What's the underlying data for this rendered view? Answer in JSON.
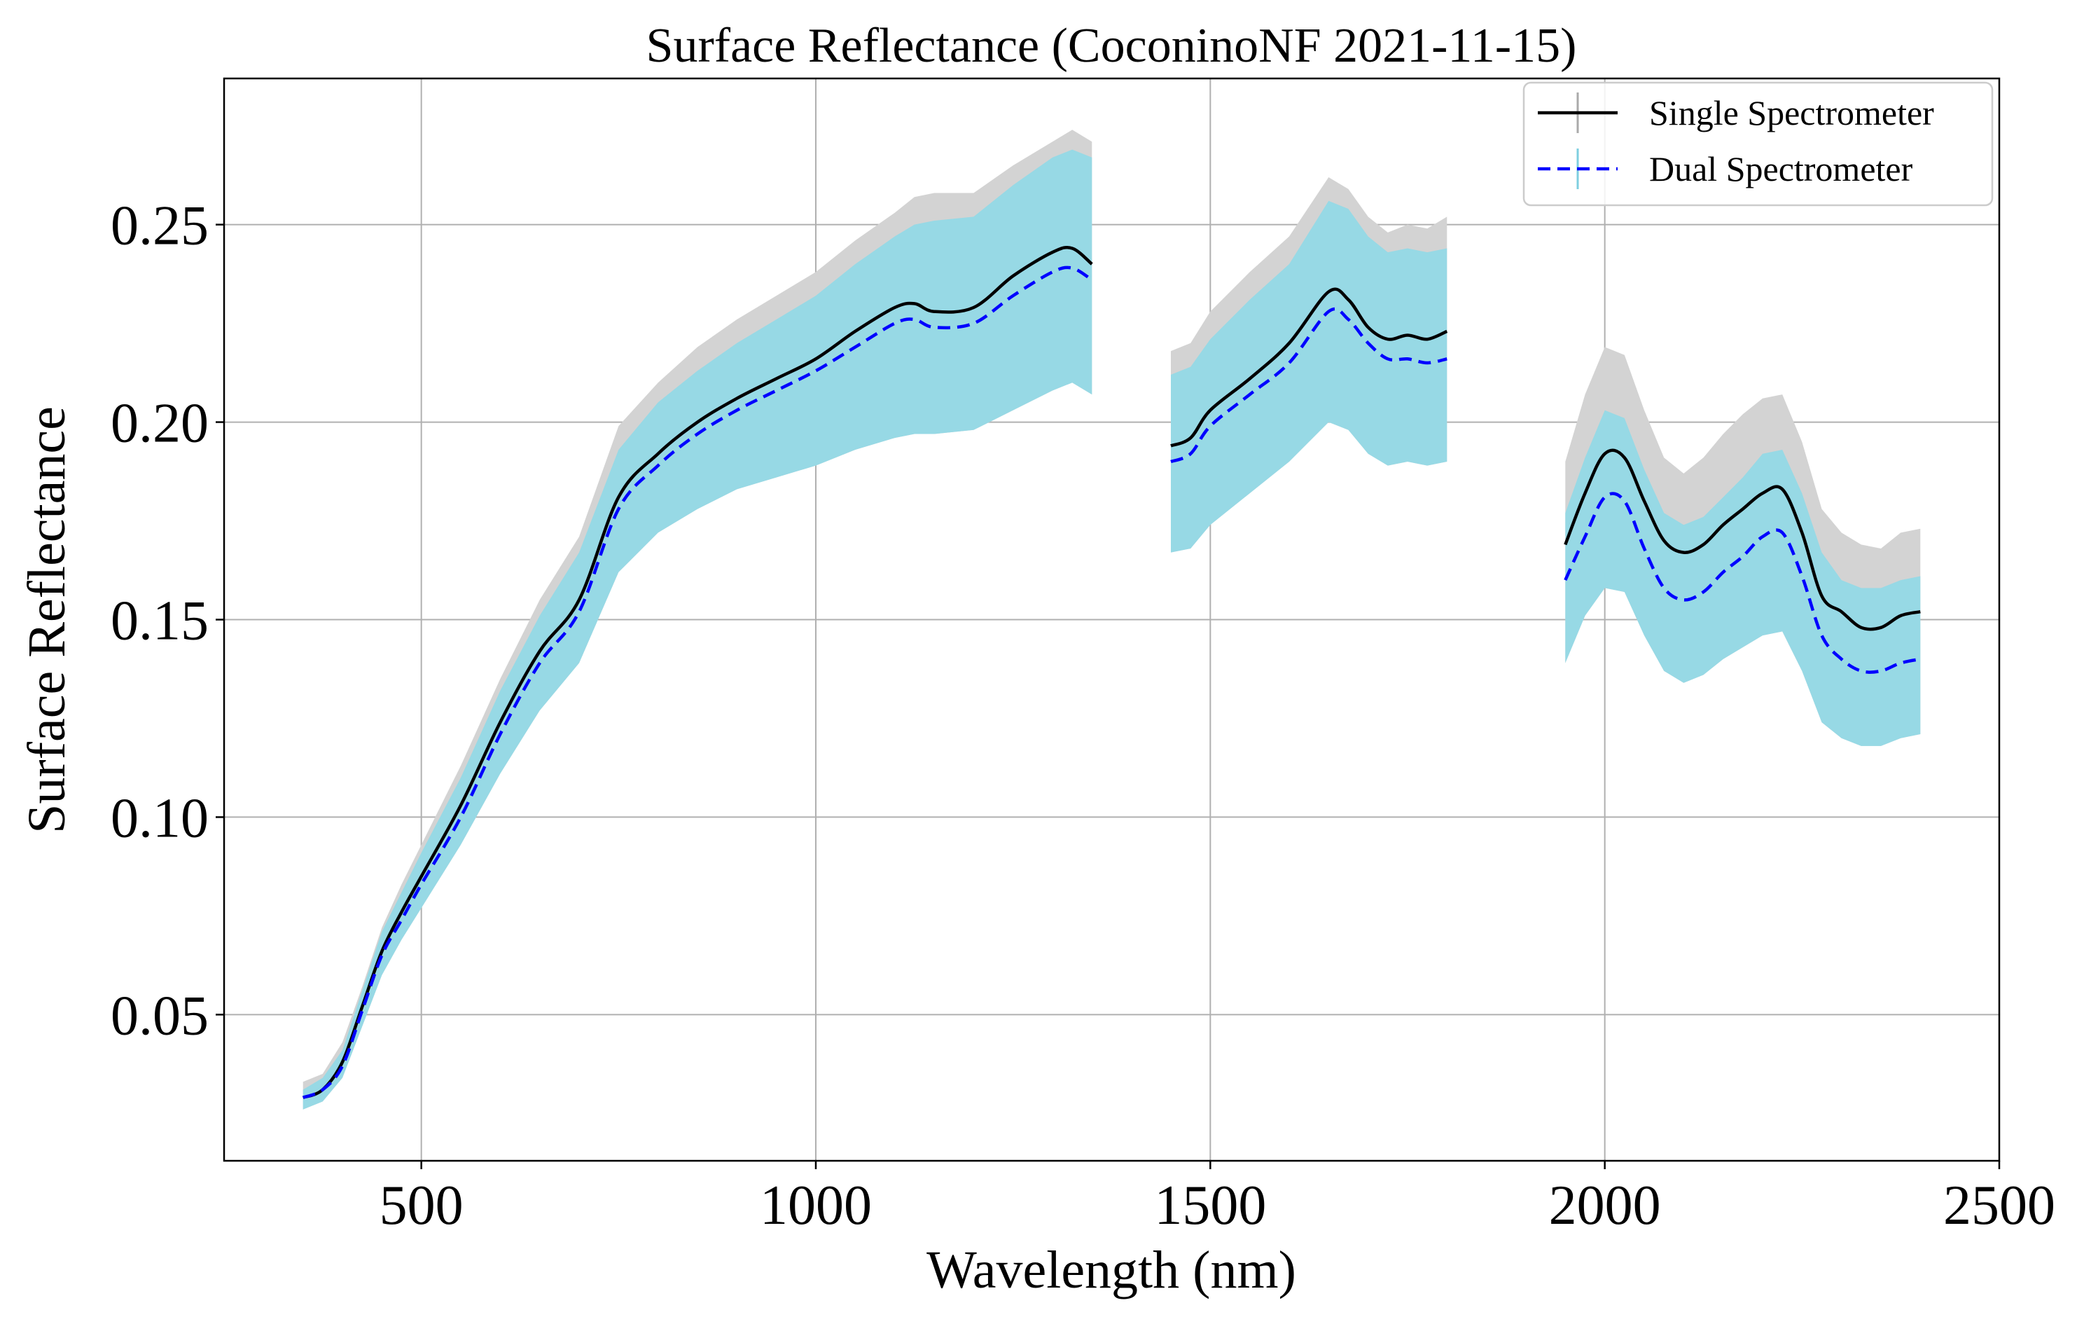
{
  "chart_data": {
    "type": "line",
    "title": "Surface Reflectance (CoconinoNF 2021-11-15)",
    "xlabel": "Wavelength (nm)",
    "ylabel": "Surface Reflectance",
    "xlim": [
      250,
      2500
    ],
    "ylim": [
      0.013,
      0.287
    ],
    "xticks": [
      500,
      1000,
      1500,
      2000,
      2500
    ],
    "xtick_labels": [
      "500",
      "1000",
      "1500",
      "2000",
      "2500"
    ],
    "yticks": [
      0.05,
      0.1,
      0.15,
      0.2,
      0.25
    ],
    "ytick_labels": [
      "0.05",
      "0.10",
      "0.15",
      "0.20",
      "0.25"
    ],
    "grid": true,
    "legend_position": "top-right",
    "colors": {
      "single": "#000000",
      "dual": "#0000ff",
      "single_band": "#d3d3d3",
      "dual_band": "#97d9e5"
    },
    "series": [
      {
        "name": "Single Spectrometer",
        "style": "solid",
        "segments": [
          {
            "x": [
              350,
              375,
              400,
              425,
              450,
              475,
              500,
              550,
              600,
              650,
              700,
              750,
              800,
              850,
              900,
              950,
              1000,
              1050,
              1100,
              1125,
              1150,
              1200,
              1250,
              1300,
              1325,
              1350
            ],
            "y": [
              0.029,
              0.031,
              0.038,
              0.052,
              0.066,
              0.076,
              0.085,
              0.103,
              0.124,
              0.142,
              0.155,
              0.181,
              0.192,
              0.2,
              0.206,
              0.211,
              0.216,
              0.223,
              0.229,
              0.23,
              0.228,
              0.229,
              0.237,
              0.243,
              0.244,
              0.24
            ],
            "upper": [
              0.033,
              0.035,
              0.043,
              0.057,
              0.072,
              0.083,
              0.093,
              0.113,
              0.135,
              0.155,
              0.171,
              0.199,
              0.21,
              0.219,
              0.226,
              0.232,
              0.238,
              0.246,
              0.253,
              0.257,
              0.258,
              0.258,
              0.265,
              0.271,
              0.274,
              0.271
            ],
            "lower": [
              0.026,
              0.028,
              0.034,
              0.047,
              0.06,
              0.069,
              0.077,
              0.093,
              0.111,
              0.127,
              0.139,
              0.162,
              0.172,
              0.178,
              0.183,
              0.186,
              0.189,
              0.193,
              0.196,
              0.197,
              0.197,
              0.198,
              0.203,
              0.208,
              0.21,
              0.207
            ]
          },
          {
            "x": [
              1450,
              1475,
              1500,
              1550,
              1600,
              1650,
              1675,
              1700,
              1725,
              1750,
              1775,
              1800
            ],
            "y": [
              0.194,
              0.196,
              0.203,
              0.211,
              0.22,
              0.233,
              0.231,
              0.224,
              0.221,
              0.222,
              0.221,
              0.223
            ],
            "upper": [
              0.218,
              0.22,
              0.228,
              0.238,
              0.247,
              0.262,
              0.259,
              0.252,
              0.248,
              0.25,
              0.249,
              0.252
            ],
            "lower": [
              0.167,
              0.168,
              0.174,
              0.182,
              0.19,
              0.2,
              0.198,
              0.192,
              0.189,
              0.19,
              0.189,
              0.19
            ]
          },
          {
            "x": [
              1950,
              1975,
              2000,
              2025,
              2050,
              2075,
              2100,
              2125,
              2150,
              2175,
              2200,
              2225,
              2250,
              2275,
              2300,
              2325,
              2350,
              2375,
              2400
            ],
            "y": [
              0.169,
              0.182,
              0.192,
              0.191,
              0.18,
              0.17,
              0.167,
              0.169,
              0.174,
              0.178,
              0.182,
              0.183,
              0.172,
              0.156,
              0.152,
              0.148,
              0.148,
              0.151,
              0.152
            ],
            "upper": [
              0.19,
              0.207,
              0.219,
              0.217,
              0.203,
              0.191,
              0.187,
              0.191,
              0.197,
              0.202,
              0.206,
              0.207,
              0.195,
              0.178,
              0.172,
              0.169,
              0.168,
              0.172,
              0.173
            ],
            "lower": [
              0.139,
              0.151,
              0.158,
              0.157,
              0.146,
              0.137,
              0.134,
              0.136,
              0.14,
              0.143,
              0.146,
              0.147,
              0.137,
              0.124,
              0.12,
              0.118,
              0.118,
              0.12,
              0.121
            ]
          }
        ]
      },
      {
        "name": "Dual Spectrometer",
        "style": "dashed",
        "segments": [
          {
            "x": [
              350,
              375,
              400,
              425,
              450,
              475,
              500,
              550,
              600,
              650,
              700,
              750,
              800,
              850,
              900,
              950,
              1000,
              1050,
              1100,
              1125,
              1150,
              1200,
              1250,
              1300,
              1325,
              1350
            ],
            "y": [
              0.029,
              0.031,
              0.037,
              0.051,
              0.065,
              0.074,
              0.083,
              0.1,
              0.121,
              0.139,
              0.152,
              0.178,
              0.189,
              0.197,
              0.203,
              0.208,
              0.213,
              0.219,
              0.225,
              0.226,
              0.224,
              0.225,
              0.232,
              0.238,
              0.239,
              0.236
            ],
            "upper": [
              0.031,
              0.034,
              0.041,
              0.056,
              0.071,
              0.081,
              0.091,
              0.11,
              0.132,
              0.151,
              0.167,
              0.193,
              0.205,
              0.213,
              0.22,
              0.226,
              0.232,
              0.24,
              0.247,
              0.25,
              0.251,
              0.252,
              0.26,
              0.267,
              0.269,
              0.267
            ],
            "lower": [
              0.026,
              0.028,
              0.034,
              0.047,
              0.06,
              0.069,
              0.077,
              0.093,
              0.111,
              0.127,
              0.139,
              0.162,
              0.172,
              0.178,
              0.183,
              0.186,
              0.189,
              0.193,
              0.196,
              0.197,
              0.197,
              0.198,
              0.203,
              0.208,
              0.21,
              0.207
            ]
          },
          {
            "x": [
              1450,
              1475,
              1500,
              1550,
              1600,
              1650,
              1675,
              1700,
              1725,
              1750,
              1775,
              1800
            ],
            "y": [
              0.19,
              0.192,
              0.199,
              0.207,
              0.215,
              0.228,
              0.226,
              0.22,
              0.216,
              0.216,
              0.215,
              0.216
            ],
            "upper": [
              0.212,
              0.214,
              0.221,
              0.231,
              0.24,
              0.256,
              0.254,
              0.247,
              0.243,
              0.244,
              0.243,
              0.244
            ],
            "lower": [
              0.167,
              0.168,
              0.174,
              0.182,
              0.19,
              0.2,
              0.198,
              0.192,
              0.189,
              0.19,
              0.189,
              0.19
            ]
          },
          {
            "x": [
              1950,
              1975,
              2000,
              2025,
              2050,
              2075,
              2100,
              2125,
              2150,
              2175,
              2200,
              2225,
              2250,
              2275,
              2300,
              2325,
              2350,
              2375,
              2400
            ],
            "y": [
              0.16,
              0.171,
              0.181,
              0.18,
              0.168,
              0.158,
              0.155,
              0.157,
              0.162,
              0.166,
              0.171,
              0.172,
              0.161,
              0.146,
              0.14,
              0.137,
              0.137,
              0.139,
              0.14
            ],
            "upper": [
              0.177,
              0.191,
              0.203,
              0.201,
              0.188,
              0.177,
              0.174,
              0.176,
              0.181,
              0.186,
              0.192,
              0.193,
              0.182,
              0.167,
              0.16,
              0.158,
              0.158,
              0.16,
              0.161
            ],
            "lower": [
              0.139,
              0.151,
              0.158,
              0.157,
              0.146,
              0.137,
              0.134,
              0.136,
              0.14,
              0.143,
              0.146,
              0.147,
              0.137,
              0.124,
              0.12,
              0.118,
              0.118,
              0.12,
              0.121
            ]
          }
        ]
      }
    ],
    "legend": [
      {
        "label": "Single Spectrometer"
      },
      {
        "label": "Dual Spectrometer"
      }
    ]
  }
}
